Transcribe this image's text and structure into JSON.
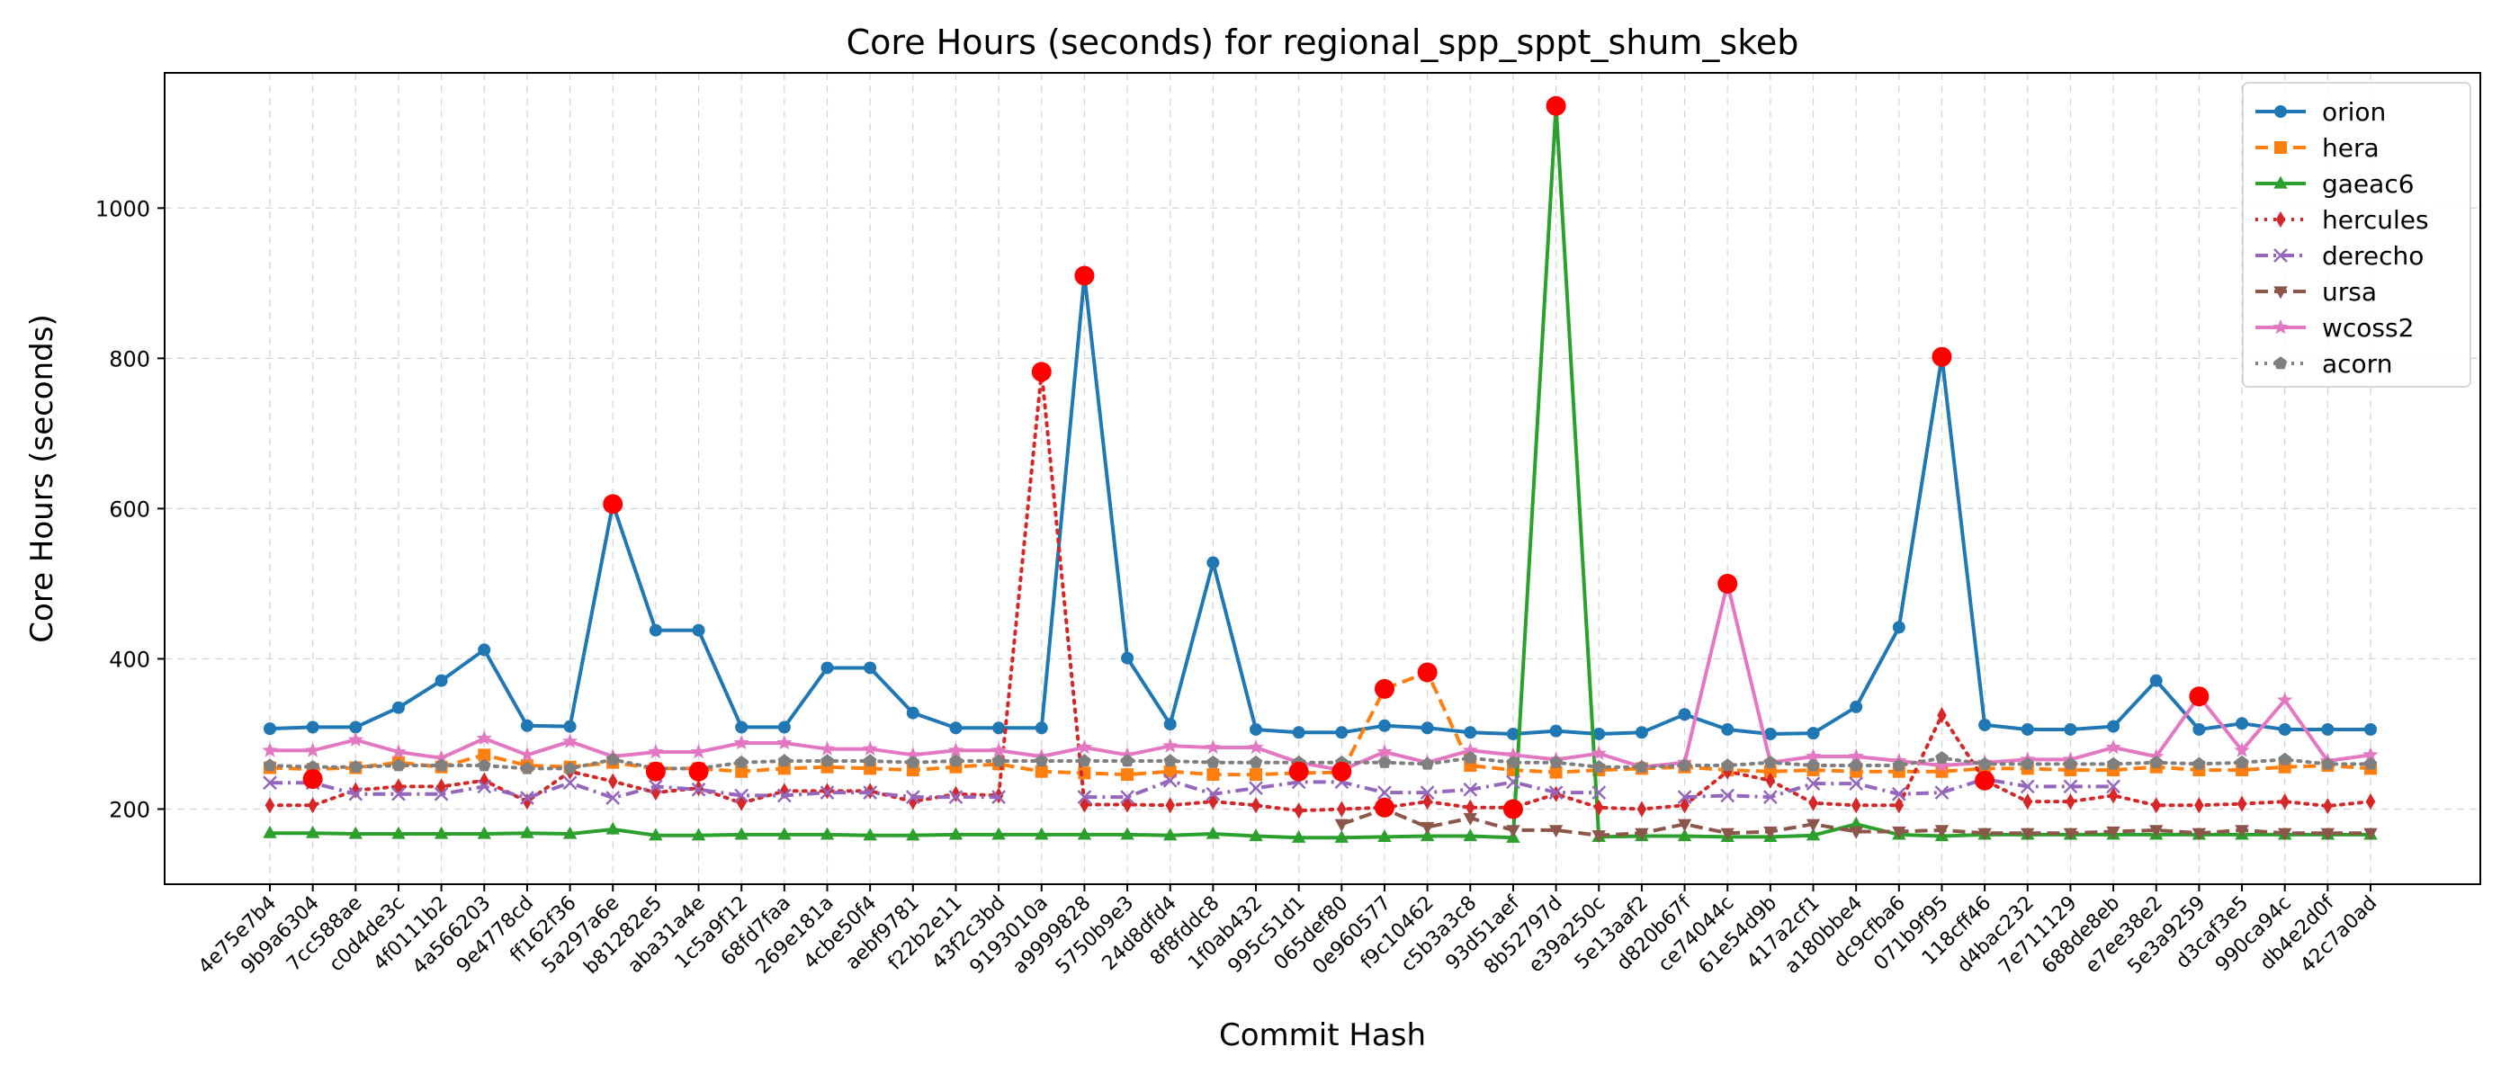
{
  "chart_data": {
    "type": "line",
    "title": "Core Hours (seconds) for regional_spp_sppt_shum_skeb",
    "xlabel": "Commit Hash",
    "ylabel": "Core Hours (seconds)",
    "ylim": [
      100,
      1180
    ],
    "yticks": [
      200,
      400,
      600,
      800,
      1000
    ],
    "grid": true,
    "legend_position": "top-right",
    "outlier_marker_color": "#ff0000",
    "categories": [
      "4e75e7b4",
      "9b9a6304",
      "7cc588ae",
      "c0d4de3c",
      "4f0111b2",
      "4a566203",
      "9e4778cd",
      "ff162f36",
      "5a297a6e",
      "b81282e5",
      "aba31a4e",
      "1c5a9f12",
      "68fd7faa",
      "269e181a",
      "4cbe50f4",
      "aebf9781",
      "f22b2e11",
      "43f2c3bd",
      "9193010a",
      "a9999828",
      "5750b9e3",
      "24d8dfd4",
      "8f8fddc8",
      "1f0ab432",
      "995c51d1",
      "065def80",
      "0e960577",
      "f9c10462",
      "c5b3a3c8",
      "93d51aef",
      "8b52797d",
      "e39a250c",
      "5e13aaf2",
      "d820b67f",
      "ce74044c",
      "61e54d9b",
      "417a2cf1",
      "a180bbe4",
      "dc9cfba6",
      "071b9f95",
      "118cff46",
      "d4bac232",
      "7e711129",
      "688de8eb",
      "e7ee38e2",
      "5e3a9259",
      "d3caf3e5",
      "990ca94c",
      "db4e2d0f",
      "42c7a0ad"
    ],
    "series": [
      {
        "name": "orion",
        "color": "#1f77b4",
        "marker": "circle",
        "line": "solid",
        "values": [
          307,
          309,
          309,
          335,
          371,
          412,
          311,
          310,
          606,
          438,
          438,
          309,
          309,
          388,
          388,
          328,
          308,
          308,
          308,
          910,
          401,
          313,
          528,
          306,
          302,
          302,
          311,
          308,
          302,
          300,
          304,
          300,
          302,
          326,
          306,
          300,
          301,
          336,
          442,
          802,
          312,
          306,
          306,
          310,
          371,
          306,
          314,
          306,
          306,
          306
        ]
      },
      {
        "name": "hera",
        "color": "#ff7f0e",
        "marker": "square",
        "line": "dashed",
        "values": [
          255,
          253,
          255,
          262,
          256,
          272,
          258,
          256,
          262,
          254,
          254,
          250,
          254,
          256,
          254,
          252,
          256,
          260,
          250,
          248,
          246,
          250,
          246,
          246,
          248,
          249,
          360,
          382,
          258,
          252,
          249,
          252,
          254,
          256,
          252,
          250,
          252,
          250,
          250,
          250,
          254,
          254,
          252,
          252,
          256,
          252,
          252,
          256,
          258,
          254
        ]
      },
      {
        "name": "gaeac6",
        "color": "#2ca02c",
        "marker": "triangle-up",
        "line": "solid",
        "values": [
          168,
          168,
          167,
          167,
          167,
          167,
          168,
          167,
          173,
          165,
          165,
          166,
          166,
          166,
          165,
          165,
          166,
          166,
          166,
          166,
          166,
          165,
          167,
          164,
          162,
          162,
          163,
          164,
          164,
          162,
          1136,
          163,
          164,
          164,
          163,
          163,
          165,
          180,
          166,
          164,
          166,
          166,
          166,
          166,
          166,
          166,
          166,
          166,
          166,
          166
        ]
      },
      {
        "name": "hercules",
        "color": "#d62728",
        "marker": "diamond",
        "line": "dotted",
        "values": [
          205,
          205,
          225,
          230,
          230,
          238,
          210,
          250,
          237,
          222,
          228,
          208,
          224,
          224,
          224,
          210,
          220,
          218,
          782,
          206,
          206,
          205,
          210,
          205,
          198,
          200,
          202,
          210,
          202,
          202,
          220,
          202,
          200,
          205,
          250,
          238,
          208,
          205,
          205,
          325,
          238,
          210,
          210,
          218,
          205,
          205,
          207,
          210,
          204,
          210
        ]
      },
      {
        "name": "derecho",
        "color": "#9467bd",
        "marker": "x",
        "line": "dashdot",
        "values": [
          235,
          235,
          220,
          220,
          220,
          230,
          215,
          235,
          215,
          230,
          226,
          218,
          218,
          222,
          222,
          216,
          216,
          216,
          null,
          216,
          216,
          238,
          220,
          228,
          236,
          236,
          222,
          222,
          226,
          236,
          222,
          222,
          null,
          216,
          218,
          216,
          234,
          234,
          220,
          222,
          240,
          230,
          230,
          230,
          null,
          null,
          null,
          null,
          null,
          null
        ]
      },
      {
        "name": "ursa",
        "color": "#8c564b",
        "marker": "triangle-down",
        "line": "dashed",
        "values": [
          null,
          null,
          null,
          null,
          null,
          null,
          null,
          null,
          null,
          null,
          null,
          null,
          null,
          null,
          null,
          null,
          null,
          null,
          null,
          null,
          null,
          null,
          null,
          null,
          null,
          180,
          200,
          176,
          188,
          172,
          172,
          165,
          168,
          180,
          168,
          170,
          180,
          170,
          170,
          172,
          168,
          168,
          168,
          170,
          172,
          168,
          172,
          168,
          168,
          168
        ]
      },
      {
        "name": "wcoss2",
        "color": "#e377c2",
        "marker": "star",
        "line": "solid",
        "values": [
          278,
          278,
          292,
          276,
          268,
          294,
          272,
          290,
          270,
          276,
          276,
          288,
          288,
          280,
          280,
          272,
          278,
          278,
          270,
          282,
          272,
          284,
          282,
          282,
          262,
          252,
          276,
          262,
          278,
          272,
          266,
          274,
          256,
          262,
          500,
          262,
          270,
          270,
          264,
          258,
          262,
          266,
          266,
          282,
          270,
          350,
          278,
          345,
          264,
          272
        ]
      },
      {
        "name": "acorn",
        "color": "#7f7f7f",
        "marker": "pentagon",
        "line": "dotted",
        "values": [
          258,
          256,
          256,
          258,
          258,
          258,
          254,
          254,
          266,
          254,
          254,
          262,
          264,
          264,
          264,
          262,
          264,
          264,
          264,
          264,
          264,
          264,
          262,
          262,
          262,
          262,
          262,
          260,
          268,
          262,
          262,
          256,
          256,
          258,
          258,
          262,
          258,
          258,
          258,
          268,
          260,
          260,
          260,
          260,
          262,
          260,
          262,
          266,
          260,
          260
        ]
      }
    ],
    "outliers": [
      {
        "category": "9b9a6304",
        "value": 240
      },
      {
        "category": "5a297a6e",
        "value": 606
      },
      {
        "category": "b81282e5",
        "value": 250
      },
      {
        "category": "aba31a4e",
        "value": 250
      },
      {
        "category": "9193010a",
        "value": 782
      },
      {
        "category": "a9999828",
        "value": 910
      },
      {
        "category": "995c51d1",
        "value": 250
      },
      {
        "category": "065def80",
        "value": 250
      },
      {
        "category": "0e960577",
        "value": 360
      },
      {
        "category": "0e960577",
        "value": 202
      },
      {
        "category": "f9c10462",
        "value": 382
      },
      {
        "category": "93d51aef",
        "value": 200
      },
      {
        "category": "8b52797d",
        "value": 1136
      },
      {
        "category": "ce74044c",
        "value": 500
      },
      {
        "category": "071b9f95",
        "value": 802
      },
      {
        "category": "118cff46",
        "value": 238
      },
      {
        "category": "5e3a9259",
        "value": 350
      }
    ]
  }
}
